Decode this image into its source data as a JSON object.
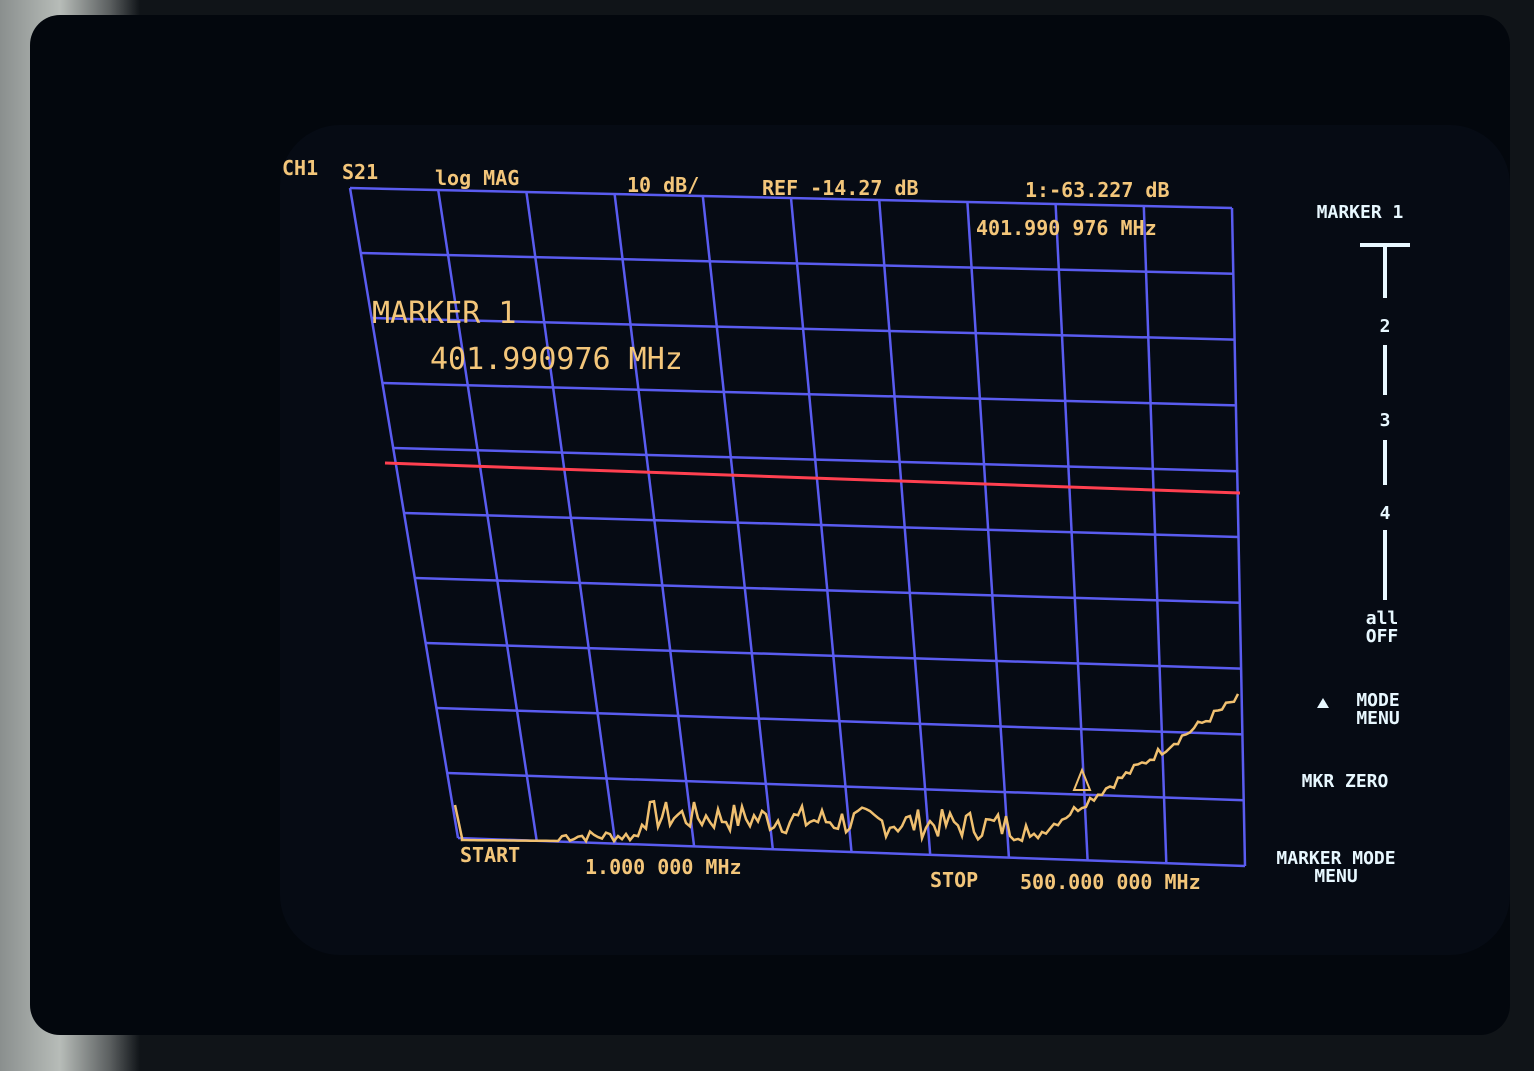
{
  "header": {
    "channel": "CH1",
    "parameter": "S21",
    "format": "log MAG",
    "scale": "10 dB/",
    "reference": "REF -14.27 dB",
    "marker_readout": "1:-63.227 dB",
    "marker_frequency": "401.990 976 MHz"
  },
  "marker_box": {
    "title": "MARKER 1",
    "frequency": "401.990976 MHz"
  },
  "footer": {
    "start_label": "START",
    "start_value": "1.000 000 MHz",
    "stop_label": "STOP",
    "stop_value": "500.000 000 MHz"
  },
  "softkeys": {
    "title": "MARKER 1",
    "items": [
      "2",
      "3",
      "4",
      "all OFF",
      "MODE MENU",
      "MKR ZERO",
      "MARKER MODE MENU"
    ]
  }
}
